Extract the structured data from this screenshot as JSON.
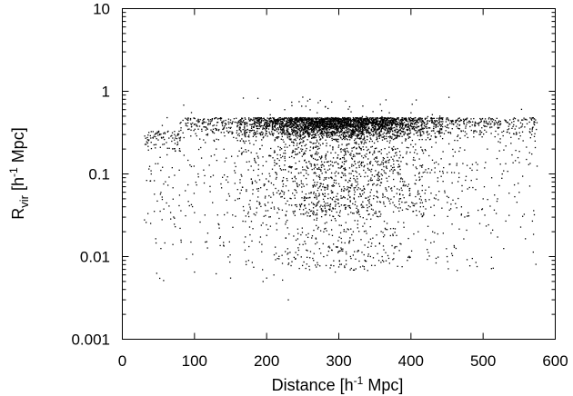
{
  "chart_data": {
    "type": "scatter",
    "title": "",
    "xlabel": "Distance [h⁻¹ Mpc]",
    "ylabel": "R_vir [h⁻¹ Mpc]",
    "xlabel_parts": {
      "pre": "Distance [h",
      "sup": "-1",
      "post": " Mpc]"
    },
    "ylabel_parts": {
      "main": "R",
      "sub": "vir",
      "pre": " [h",
      "sup": "-1",
      "post": " Mpc]"
    },
    "xlim": [
      0,
      600
    ],
    "ylim": [
      0.001,
      10
    ],
    "yscale": "log",
    "grid": false,
    "legend": "none",
    "marker_color": "#000000",
    "xticks": [
      0,
      100,
      200,
      300,
      400,
      500,
      600
    ],
    "xtick_labels": [
      "0",
      "100",
      "200",
      "300",
      "400",
      "500",
      "600"
    ],
    "yticks": [
      0.001,
      0.01,
      0.1,
      1,
      10
    ],
    "ytick_labels": [
      "0.001",
      "0.01",
      "0.1",
      "1",
      "10"
    ],
    "point_count_approx": 9000,
    "x_range_of_points": [
      30,
      575
    ],
    "dense_band_y": [
      0.1,
      0.5
    ],
    "series": [
      {
        "values": [
          [
            35,
            0.26
          ],
          [
            40,
            0.1
          ],
          [
            45,
            0.3
          ],
          [
            55,
            0.028
          ],
          [
            62,
            0.48
          ],
          [
            70,
            0.014
          ],
          [
            80,
            0.022
          ],
          [
            85,
            0.68
          ],
          [
            90,
            0.38
          ],
          [
            95,
            0.015
          ],
          [
            100,
            0.0065
          ],
          [
            105,
            0.1
          ],
          [
            115,
            0.015
          ],
          [
            125,
            0.045
          ],
          [
            130,
            0.0062
          ],
          [
            140,
            0.35
          ],
          [
            150,
            0.0055
          ],
          [
            160,
            0.05
          ],
          [
            170,
            0.012
          ],
          [
            175,
            0.009
          ],
          [
            180,
            0.0085
          ],
          [
            190,
            0.45
          ],
          [
            195,
            0.005
          ],
          [
            200,
            0.0055
          ],
          [
            205,
            0.52
          ],
          [
            210,
            0.006
          ],
          [
            215,
            0.0095
          ],
          [
            222,
            0.0052
          ],
          [
            225,
            0.6
          ],
          [
            230,
            0.003
          ],
          [
            235,
            0.67
          ],
          [
            240,
            0.0095
          ],
          [
            245,
            0.75
          ],
          [
            250,
            0.85
          ],
          [
            255,
            0.012
          ],
          [
            260,
            0.8
          ],
          [
            265,
            0.009
          ],
          [
            270,
            0.55
          ],
          [
            275,
            0.011
          ],
          [
            285,
            0.62
          ],
          [
            290,
            0.012
          ],
          [
            295,
            0.0065
          ],
          [
            300,
            0.0075
          ],
          [
            310,
            0.02
          ],
          [
            315,
            0.65
          ],
          [
            320,
            0.02
          ],
          [
            330,
            0.0075
          ],
          [
            340,
            0.0068
          ],
          [
            350,
            0.0078
          ],
          [
            360,
            0.01
          ],
          [
            370,
            0.55
          ],
          [
            380,
            0.018
          ],
          [
            395,
            0.009
          ],
          [
            400,
            0.55
          ],
          [
            410,
            0.02
          ],
          [
            420,
            0.016
          ],
          [
            430,
            0.02
          ],
          [
            440,
            0.5
          ],
          [
            450,
            0.01
          ],
          [
            460,
            0.013
          ],
          [
            470,
            0.04
          ],
          [
            485,
            0.0095
          ],
          [
            490,
            0.0085
          ],
          [
            500,
            0.05
          ],
          [
            510,
            0.4
          ],
          [
            520,
            0.05
          ],
          [
            530,
            0.45
          ],
          [
            540,
            0.17
          ],
          [
            550,
            0.06
          ],
          [
            555,
            0.45
          ],
          [
            560,
            0.15
          ],
          [
            565,
            0.35
          ],
          [
            570,
            0.036
          ],
          [
            572,
            0.25
          ]
        ]
      }
    ]
  }
}
